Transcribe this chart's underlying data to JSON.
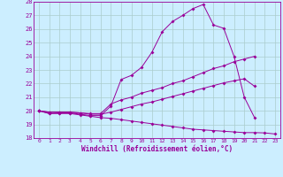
{
  "background_color": "#cceeff",
  "line_color": "#990099",
  "grid_color": "#aacccc",
  "xlabel": "Windchill (Refroidissement éolien,°C)",
  "xlim": [
    -0.5,
    23.5
  ],
  "ylim": [
    18,
    28
  ],
  "yticks": [
    18,
    19,
    20,
    21,
    22,
    23,
    24,
    25,
    26,
    27,
    28
  ],
  "xticks": [
    0,
    1,
    2,
    3,
    4,
    5,
    6,
    7,
    8,
    9,
    10,
    11,
    12,
    13,
    14,
    15,
    16,
    17,
    18,
    19,
    20,
    21,
    22,
    23
  ],
  "curves": [
    {
      "x": [
        0,
        1,
        2,
        3,
        4,
        5,
        6,
        7,
        8,
        9,
        10,
        11,
        12,
        13,
        14,
        15,
        16,
        17,
        18,
        19,
        20,
        21
      ],
      "y": [
        20,
        19.8,
        19.85,
        19.85,
        19.75,
        19.65,
        19.65,
        20.35,
        22.3,
        22.6,
        23.2,
        24.3,
        25.8,
        26.55,
        27.0,
        27.5,
        27.8,
        26.3,
        26.05,
        24.0,
        21.0,
        19.5
      ]
    },
    {
      "x": [
        0,
        1,
        2,
        3,
        4,
        5,
        6,
        7,
        8,
        9,
        10,
        11,
        12,
        13,
        14,
        15,
        16,
        17,
        18,
        19,
        20,
        21
      ],
      "y": [
        20,
        19.9,
        19.9,
        19.9,
        19.85,
        19.8,
        19.8,
        20.5,
        20.8,
        21.0,
        21.3,
        21.5,
        21.7,
        22.0,
        22.2,
        22.5,
        22.8,
        23.1,
        23.3,
        23.6,
        23.8,
        24.0
      ]
    },
    {
      "x": [
        0,
        1,
        2,
        3,
        4,
        5,
        6,
        7,
        8,
        9,
        10,
        11,
        12,
        13,
        14,
        15,
        16,
        17,
        18,
        19,
        20,
        21
      ],
      "y": [
        20,
        19.9,
        19.9,
        19.9,
        19.85,
        19.75,
        19.75,
        19.9,
        20.1,
        20.3,
        20.5,
        20.65,
        20.85,
        21.05,
        21.25,
        21.45,
        21.65,
        21.85,
        22.05,
        22.2,
        22.35,
        21.8
      ]
    },
    {
      "x": [
        0,
        1,
        2,
        3,
        4,
        5,
        6,
        7,
        8,
        9,
        10,
        11,
        12,
        13,
        14,
        15,
        16,
        17,
        18,
        19,
        20,
        21,
        22,
        23
      ],
      "y": [
        20,
        19.8,
        19.8,
        19.8,
        19.7,
        19.6,
        19.5,
        19.45,
        19.35,
        19.25,
        19.15,
        19.05,
        18.95,
        18.85,
        18.75,
        18.65,
        18.6,
        18.55,
        18.5,
        18.45,
        18.4,
        18.4,
        18.38,
        18.3
      ]
    }
  ]
}
